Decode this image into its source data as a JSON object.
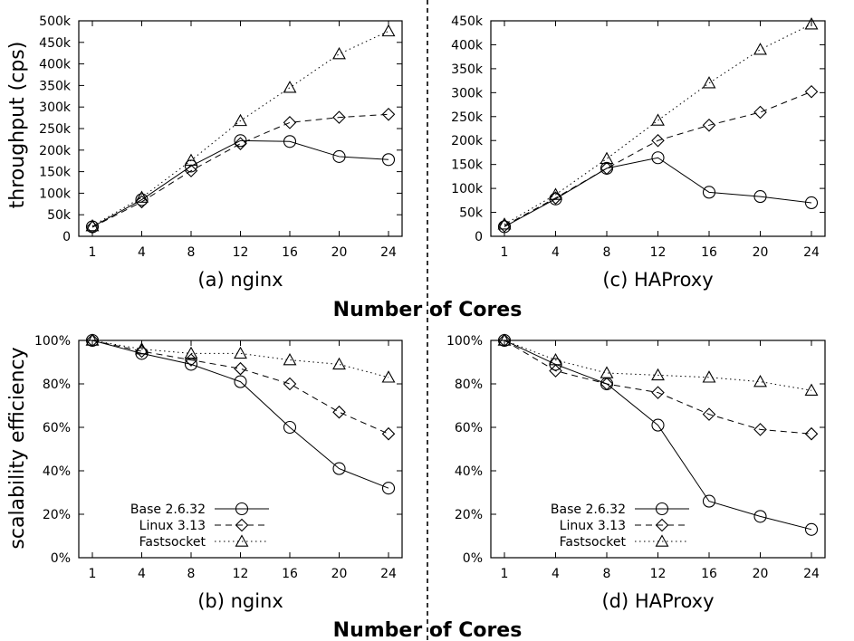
{
  "figure": {
    "shared_xlabel": "Number of Cores",
    "ylabel_top": "throughput (cps)",
    "ylabel_bottom": "scalability efficiency"
  },
  "chart_data": [
    {
      "id": "a",
      "type": "line",
      "caption": "(a) nginx",
      "x": [
        "1",
        "4",
        "8",
        "12",
        "16",
        "20",
        "24"
      ],
      "ylim": [
        0,
        500000
      ],
      "yticks": [
        "0",
        "50k",
        "100k",
        "150k",
        "200k",
        "250k",
        "300k",
        "350k",
        "400k",
        "450k",
        "500k"
      ],
      "grid": false,
      "legend": "none",
      "series": [
        {
          "name": "Base 2.6.32",
          "marker": "circle",
          "dash": "solid",
          "values": [
            22000,
            85000,
            163000,
            222000,
            220000,
            185000,
            178000
          ]
        },
        {
          "name": "Linux 3.13",
          "marker": "diamond",
          "dash": "dashed",
          "values": [
            21000,
            80000,
            152000,
            215000,
            264000,
            276000,
            283000
          ]
        },
        {
          "name": "Fastsocket",
          "marker": "triangle",
          "dash": "dotted",
          "values": [
            24000,
            90000,
            176000,
            268000,
            345000,
            423000,
            476000
          ]
        }
      ]
    },
    {
      "id": "c",
      "type": "line",
      "caption": "(c) HAProxy",
      "x": [
        "1",
        "4",
        "8",
        "12",
        "16",
        "20",
        "24"
      ],
      "ylim": [
        0,
        450000
      ],
      "yticks": [
        "0",
        "50k",
        "100k",
        "150k",
        "200k",
        "250k",
        "300k",
        "350k",
        "400k",
        "450k"
      ],
      "grid": false,
      "legend": "none",
      "series": [
        {
          "name": "Base 2.6.32",
          "marker": "circle",
          "dash": "solid",
          "values": [
            20000,
            78000,
            142000,
            164000,
            92000,
            83000,
            70000
          ]
        },
        {
          "name": "Linux 3.13",
          "marker": "diamond",
          "dash": "dashed",
          "values": [
            22000,
            80000,
            142000,
            200000,
            232000,
            259000,
            302000
          ]
        },
        {
          "name": "Fastsocket",
          "marker": "triangle",
          "dash": "dotted",
          "values": [
            25000,
            87000,
            162000,
            242000,
            320000,
            390000,
            443000
          ]
        }
      ]
    },
    {
      "id": "b",
      "type": "line",
      "caption": "(b) nginx",
      "x": [
        "1",
        "4",
        "8",
        "12",
        "16",
        "20",
        "24"
      ],
      "ylim": [
        0,
        100
      ],
      "yunit": "%",
      "yticks": [
        "0%",
        "20%",
        "40%",
        "60%",
        "80%",
        "100%"
      ],
      "grid": false,
      "legend": "bottom-left",
      "series": [
        {
          "name": "Base 2.6.32",
          "marker": "circle",
          "dash": "solid",
          "values": [
            100,
            94,
            89,
            81,
            60,
            41,
            32
          ]
        },
        {
          "name": "Linux 3.13",
          "marker": "diamond",
          "dash": "dashed",
          "values": [
            100,
            95,
            91,
            87,
            80,
            67,
            57
          ]
        },
        {
          "name": "Fastsocket",
          "marker": "triangle",
          "dash": "dotted",
          "values": [
            100,
            96,
            94,
            94,
            91,
            89,
            83
          ]
        }
      ]
    },
    {
      "id": "d",
      "type": "line",
      "caption": "(d) HAProxy",
      "x": [
        "1",
        "4",
        "8",
        "12",
        "16",
        "20",
        "24"
      ],
      "ylim": [
        0,
        100
      ],
      "yunit": "%",
      "yticks": [
        "0%",
        "20%",
        "40%",
        "60%",
        "80%",
        "100%"
      ],
      "grid": false,
      "legend": "bottom-left",
      "series": [
        {
          "name": "Base 2.6.32",
          "marker": "circle",
          "dash": "solid",
          "values": [
            100,
            89,
            80,
            61,
            26,
            19,
            13
          ]
        },
        {
          "name": "Linux 3.13",
          "marker": "diamond",
          "dash": "dashed",
          "values": [
            100,
            86,
            80,
            76,
            66,
            59,
            57
          ]
        },
        {
          "name": "Fastsocket",
          "marker": "triangle",
          "dash": "dotted",
          "values": [
            100,
            91,
            85,
            84,
            83,
            81,
            77
          ]
        }
      ]
    }
  ]
}
